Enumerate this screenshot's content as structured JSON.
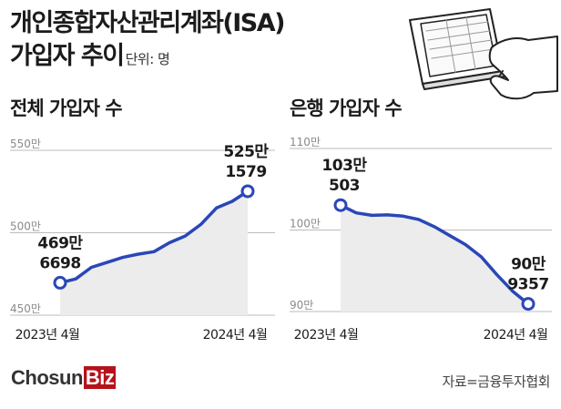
{
  "title": {
    "line1": "개인종합자산관리계좌(ISA)",
    "line2": "가입자 추이",
    "unit": "단위: 명"
  },
  "colors": {
    "line": "#2a47b8",
    "area": "#ececec",
    "grid": "#bbbbbb",
    "brand": "#b5121b"
  },
  "illustration": {
    "icon": "tablet-hand-icon"
  },
  "chart_data": [
    {
      "type": "area",
      "title": "전체 가입자 수",
      "x_ticks": [
        "2023년 4월",
        "2024년 4월"
      ],
      "y_ticks": [
        "550만",
        "500만",
        "450만"
      ],
      "ylim": [
        4500000,
        5500000
      ],
      "x": [
        "2023-04",
        "2023-05",
        "2023-06",
        "2023-07",
        "2023-08",
        "2023-09",
        "2023-10",
        "2023-11",
        "2023-12",
        "2024-01",
        "2024-02",
        "2024-03",
        "2024-04"
      ],
      "values": [
        4696698,
        4720000,
        4790000,
        4820000,
        4850000,
        4870000,
        4885000,
        4940000,
        4980000,
        5050000,
        5150000,
        5190000,
        5251579
      ],
      "start_label": [
        "469만",
        "6698"
      ],
      "end_label": [
        "525만",
        "1579"
      ]
    },
    {
      "type": "area",
      "title": "은행 가입자 수",
      "x_ticks": [
        "2023년 4월",
        "2024년 4월"
      ],
      "y_ticks": [
        "110만",
        "100만",
        "90만"
      ],
      "ylim": [
        900000,
        1100000
      ],
      "x": [
        "2023-04",
        "2023-05",
        "2023-06",
        "2023-07",
        "2023-08",
        "2023-09",
        "2023-10",
        "2023-11",
        "2023-12",
        "2024-01",
        "2024-02",
        "2024-03",
        "2024-04"
      ],
      "values": [
        1030503,
        1021000,
        1018000,
        1018500,
        1017000,
        1013000,
        1004000,
        993000,
        982000,
        967000,
        945000,
        925000,
        909357
      ],
      "start_label": [
        "103만",
        "503"
      ],
      "end_label": [
        "90만",
        "9357"
      ]
    }
  ],
  "footer": {
    "logo_a": "Chosun",
    "logo_b": "Biz",
    "source": "자료=금융투자협회"
  }
}
